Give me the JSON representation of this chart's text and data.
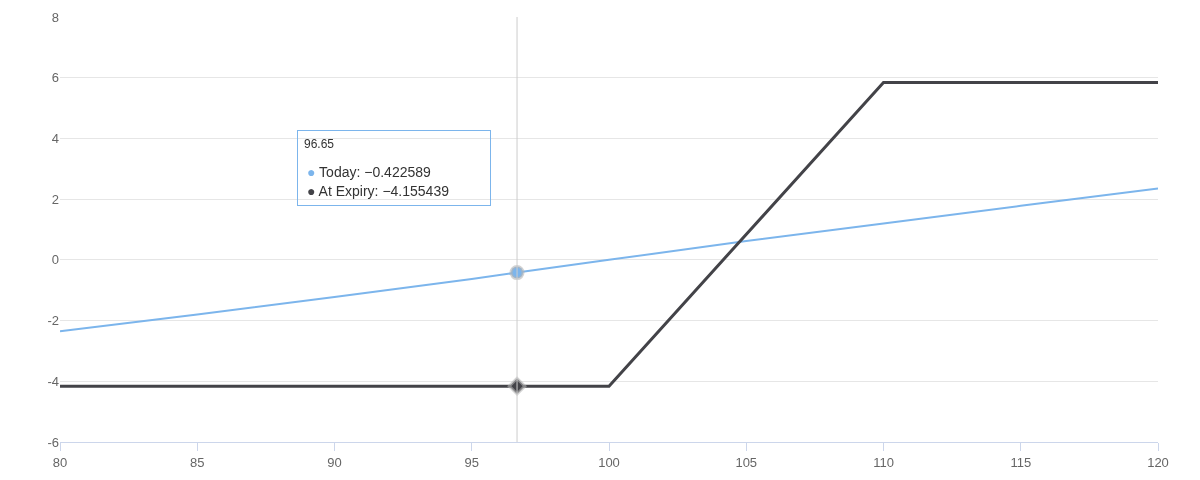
{
  "chart_data": {
    "type": "line",
    "x": [
      80,
      85,
      90,
      95,
      96.65,
      100,
      105,
      110,
      115,
      120
    ],
    "series": [
      {
        "color": "#7cb5ec",
        "values": [
          -2.35,
          -1.8,
          -1.22,
          -0.63,
          -0.42,
          0,
          0.62,
          1.2,
          1.78,
          2.35
        ]
      },
      {
        "color": "#434348",
        "x": [
          80,
          96.65,
          100,
          110,
          120
        ],
        "values": [
          -4.16,
          -4.16,
          -4.16,
          5.84,
          5.84
        ]
      }
    ],
    "xlim": [
      80,
      120
    ],
    "xticks": [
      80,
      85,
      90,
      95,
      100,
      105,
      110,
      115,
      120
    ],
    "ylim": [
      -6,
      8
    ],
    "yticks": [
      -6,
      -4,
      -2,
      0,
      2,
      4,
      6,
      8
    ],
    "grid": "y",
    "legend": false,
    "marker": "none",
    "line_style": "solid",
    "ref_lines": [
      {
        "axis": "x",
        "value": 96.65,
        "color": "#cccccc"
      }
    ],
    "annotations": [
      "96.65",
      "● Today: −0.422589",
      "● At Expiry: −4.155439"
    ]
  }
}
